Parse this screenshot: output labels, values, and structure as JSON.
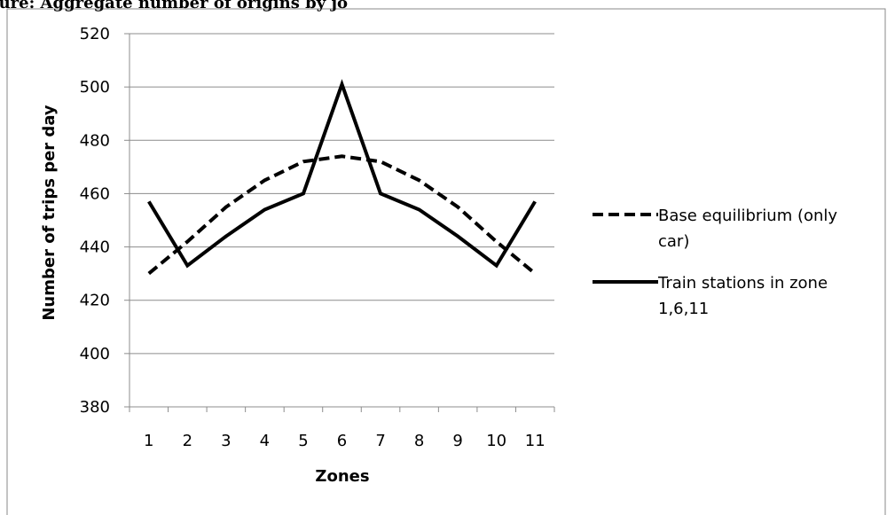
{
  "header_fragment": "gure: Aggregate number of origins by jo",
  "chart_data": {
    "type": "line",
    "categories": [
      "1",
      "2",
      "3",
      "4",
      "5",
      "6",
      "7",
      "8",
      "9",
      "10",
      "11"
    ],
    "ylabel": "Number of trips per day",
    "xlabel": "Zones",
    "ylim": [
      380,
      520
    ],
    "yticks": [
      380,
      400,
      420,
      440,
      460,
      480,
      500,
      520
    ],
    "grid": "horizontal",
    "legend_position": "right",
    "series": [
      {
        "name": "Base equilibrium (only car)",
        "legend_lines": [
          "Base equilibrium (only",
          "car)"
        ],
        "style": "dashed",
        "color": "#000000",
        "values": [
          430,
          442,
          455,
          465,
          472,
          474,
          472,
          465,
          455,
          442,
          430
        ]
      },
      {
        "name": "Train stations in zone 1,6,11",
        "legend_lines": [
          "Train stations in zone",
          "1,6,11"
        ],
        "style": "solid",
        "color": "#000000",
        "values": [
          457,
          433,
          444,
          454,
          460,
          501,
          460,
          454,
          444,
          433,
          457
        ]
      }
    ]
  }
}
